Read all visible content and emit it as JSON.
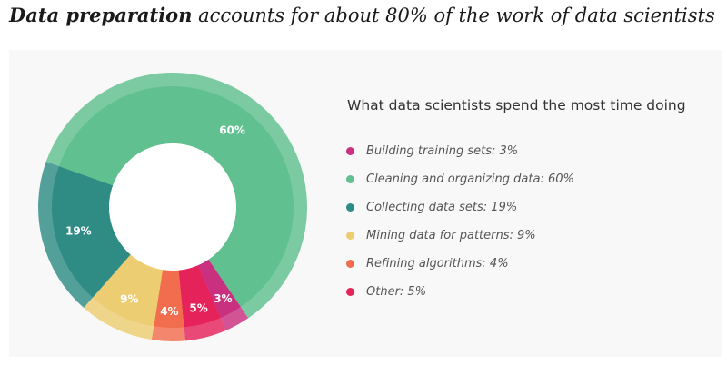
{
  "headline": {
    "bold": "Data preparation",
    "rest": " accounts for about 80% of the work of data scientists"
  },
  "chart_data": {
    "type": "pie",
    "title": "What data scientists spend the most time doing",
    "slices": [
      {
        "label": "Building training sets",
        "value": 3,
        "display": "3%",
        "legend": "Building training sets: 3%",
        "color": "#c9307f"
      },
      {
        "label": "Cleaning and organizing data",
        "value": 60,
        "display": "60%",
        "legend": "Cleaning and organizing data: 60%",
        "color": "#60c08f"
      },
      {
        "label": "Collecting data sets",
        "value": 19,
        "display": "19%",
        "legend": "Collecting data sets: 19%",
        "color": "#2e8c85"
      },
      {
        "label": "Mining data for patterns",
        "value": 9,
        "display": "9%",
        "legend": "Mining data for patterns: 9%",
        "color": "#edcd72"
      },
      {
        "label": "Refining algorithms",
        "value": 4,
        "display": "4%",
        "legend": "Refining algorithms: 4%",
        "color": "#f16d4e"
      },
      {
        "label": "Other",
        "value": 5,
        "display": "5%",
        "legend": "Other: 5%",
        "color": "#e5225a"
      }
    ],
    "draw_order": [
      "Collecting data sets",
      "Cleaning and organizing data",
      "Building training sets",
      "Other",
      "Refining algorithms",
      "Mining data for patterns"
    ],
    "legend_position": "right"
  }
}
